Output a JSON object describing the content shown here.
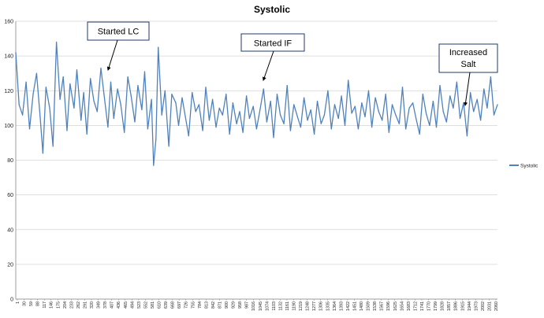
{
  "chart_data": {
    "type": "line",
    "title": "Systolic",
    "xlabel": "",
    "ylabel": "",
    "ylim": [
      0,
      160
    ],
    "y_ticks": [
      0,
      20,
      40,
      60,
      80,
      100,
      120,
      140,
      160
    ],
    "x_range": [
      1,
      2060
    ],
    "x_tick_labels": [
      "1",
      "30",
      "59",
      "88",
      "117",
      "146",
      "175",
      "204",
      "233",
      "262",
      "291",
      "320",
      "349",
      "378",
      "407",
      "436",
      "465",
      "494",
      "523",
      "552",
      "581",
      "610",
      "639",
      "668",
      "697",
      "726",
      "755",
      "784",
      "813",
      "842",
      "871",
      "900",
      "929",
      "958",
      "987",
      "1016",
      "1045",
      "1074",
      "1103",
      "1132",
      "1161",
      "1190",
      "1219",
      "1248",
      "1277",
      "1306",
      "1335",
      "1364",
      "1393",
      "1422",
      "1451",
      "1480",
      "1509",
      "1538",
      "1567",
      "1596",
      "1625",
      "1654",
      "1683",
      "1712",
      "1741",
      "1770",
      "1799",
      "1828",
      "1857",
      "1886",
      "1915",
      "1944",
      "1973",
      "2002",
      "2031",
      "2060"
    ],
    "grid": "horizontal",
    "legend_position": "right",
    "series": [
      {
        "name": "Systolic",
        "color": "#4f81bd",
        "x": [
          1,
          15,
          30,
          45,
          60,
          75,
          90,
          105,
          117,
          130,
          146,
          160,
          175,
          190,
          204,
          220,
          233,
          250,
          262,
          280,
          291,
          305,
          320,
          335,
          349,
          365,
          378,
          395,
          407,
          420,
          436,
          450,
          465,
          480,
          494,
          510,
          523,
          540,
          552,
          565,
          581,
          590,
          600,
          610,
          625,
          639,
          655,
          668,
          685,
          697,
          712,
          726,
          740,
          755,
          770,
          784,
          800,
          813,
          828,
          842,
          857,
          871,
          885,
          900,
          915,
          929,
          945,
          958,
          972,
          987,
          1000,
          1016,
          1030,
          1045,
          1060,
          1074,
          1090,
          1103,
          1118,
          1132,
          1147,
          1161,
          1175,
          1190,
          1205,
          1219,
          1233,
          1248,
          1262,
          1277,
          1290,
          1306,
          1320,
          1335,
          1350,
          1364,
          1380,
          1393,
          1408,
          1422,
          1437,
          1451,
          1465,
          1480,
          1494,
          1509,
          1523,
          1538,
          1552,
          1567,
          1582,
          1596,
          1610,
          1625,
          1640,
          1654,
          1668,
          1683,
          1698,
          1712,
          1727,
          1741,
          1755,
          1770,
          1785,
          1799,
          1814,
          1828,
          1842,
          1857,
          1871,
          1886,
          1900,
          1915,
          1930,
          1944,
          1958,
          1973,
          1988,
          2002,
          2016,
          2031,
          2045,
          2060
        ],
        "values": [
          142,
          112,
          106,
          125,
          98,
          118,
          130,
          105,
          84,
          122,
          110,
          88,
          148,
          115,
          128,
          97,
          124,
          110,
          132,
          103,
          119,
          95,
          127,
          114,
          108,
          133,
          118,
          99,
          125,
          104,
          121,
          112,
          96,
          128,
          117,
          102,
          123,
          109,
          131,
          98,
          115,
          77,
          92,
          145,
          106,
          120,
          88,
          118,
          113,
          100,
          116,
          105,
          94,
          119,
          108,
          112,
          97,
          122,
          103,
          115,
          99,
          110,
          106,
          118,
          95,
          113,
          101,
          108,
          96,
          117,
          104,
          111,
          98,
          109,
          121,
          102,
          114,
          93,
          118,
          106,
          101,
          123,
          97,
          112,
          105,
          99,
          116,
          103,
          109,
          95,
          114,
          101,
          106,
          120,
          98,
          112,
          104,
          117,
          100,
          126,
          107,
          111,
          98,
          113,
          105,
          120,
          99,
          116,
          108,
          103,
          118,
          96,
          112,
          106,
          101,
          122,
          98,
          110,
          113,
          104,
          95,
          118,
          107,
          100,
          114,
          99,
          123,
          108,
          102,
          117,
          110,
          125,
          104,
          113,
          94,
          119,
          108,
          115,
          103,
          121,
          110,
          128,
          106,
          112
        ]
      }
    ],
    "annotations": [
      {
        "label": "Started LC"
      },
      {
        "label": "Started IF"
      },
      {
        "label": "Increased Salt"
      }
    ]
  }
}
